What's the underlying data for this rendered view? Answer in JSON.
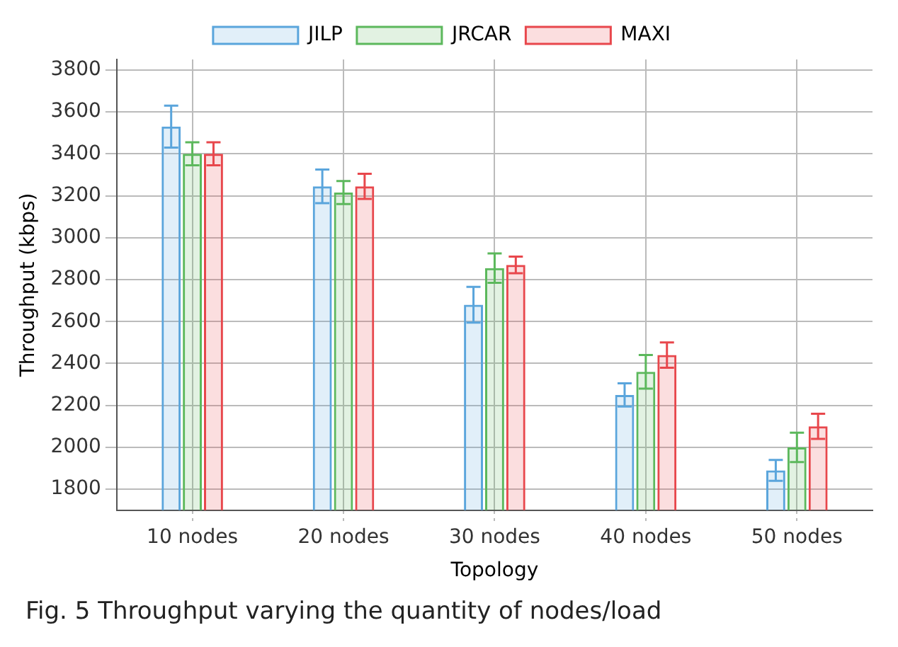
{
  "chart_data": {
    "type": "bar",
    "xlabel": "Topology",
    "ylabel": "Throughput (kbps)",
    "categories": [
      "10 nodes",
      "20 nodes",
      "30 nodes",
      "40 nodes",
      "50 nodes"
    ],
    "series": [
      {
        "name": "JILP",
        "color": "#5aa5dc",
        "values": [
          3530,
          3245,
          2680,
          2250,
          1890
        ],
        "errors": [
          100,
          80,
          85,
          55,
          50
        ]
      },
      {
        "name": "JRCAR",
        "color": "#5cb85c",
        "values": [
          3400,
          3215,
          2855,
          2360,
          2000
        ],
        "errors": [
          55,
          55,
          70,
          80,
          70
        ]
      },
      {
        "name": "MAXI",
        "color": "#e8474c",
        "values": [
          3400,
          3245,
          2870,
          2440,
          2100
        ],
        "errors": [
          55,
          60,
          40,
          60,
          60
        ]
      }
    ],
    "ylim": [
      1700,
      3850
    ],
    "yticks": [
      1800,
      2000,
      2200,
      2400,
      2600,
      2800,
      3000,
      3200,
      3400,
      3600,
      3800
    ],
    "grid": true,
    "legend": "top",
    "annotations": [
      "Fig. 5 Throughput varying the quantity of nodes/load"
    ]
  }
}
